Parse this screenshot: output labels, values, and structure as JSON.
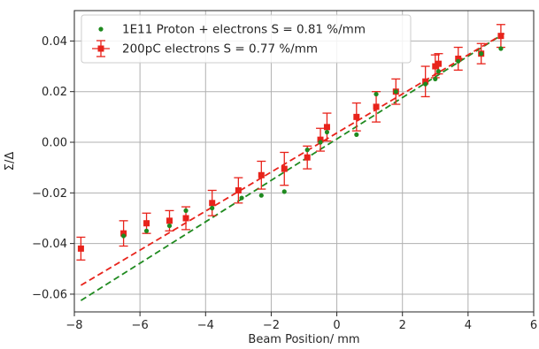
{
  "chart_data": {
    "type": "scatter",
    "xlabel": "Beam Position/ mm",
    "ylabel": "Σ/Δ",
    "xlim": [
      -8,
      6
    ],
    "ylim": [
      -0.067,
      0.052
    ],
    "xticks": [
      -8,
      -6,
      -4,
      -2,
      0,
      2,
      4,
      6
    ],
    "yticks": [
      -0.06,
      -0.04,
      -0.02,
      0.0,
      0.02,
      0.04
    ],
    "xtick_labels": [
      "−8",
      "−6",
      "−4",
      "−2",
      "0",
      "2",
      "4",
      "6"
    ],
    "ytick_labels": [
      "−0.06",
      "−0.04",
      "−0.02",
      "0.00",
      "0.02",
      "0.04"
    ],
    "grid": true,
    "legend_position": "top-left",
    "series": [
      {
        "name": "1E11 Proton + electrons S = 0.81 %/mm",
        "color": "#1f8a1f",
        "marker": "dot",
        "x": [
          -6.5,
          -5.8,
          -5.1,
          -4.6,
          -3.8,
          -2.9,
          -2.3,
          -1.6,
          -0.9,
          -0.5,
          -0.3,
          0.6,
          1.2,
          1.8,
          2.7,
          3.0,
          3.1,
          3.7,
          4.4,
          5.0
        ],
        "y": [
          -0.037,
          -0.035,
          -0.033,
          -0.027,
          -0.026,
          -0.022,
          -0.021,
          -0.0195,
          -0.003,
          0.0,
          0.004,
          0.003,
          0.019,
          0.02,
          0.023,
          0.025,
          0.028,
          0.032,
          0.035,
          0.037
        ],
        "fit": {
          "x1": -7.8,
          "y1": -0.0625,
          "x2": 5.1,
          "y2": 0.043
        }
      },
      {
        "name": "200pC electrons S = 0.77 %/mm",
        "color": "#e8231b",
        "marker": "square-errorbar",
        "x": [
          -7.8,
          -6.5,
          -5.8,
          -5.1,
          -4.6,
          -3.8,
          -3.0,
          -2.3,
          -1.6,
          -0.9,
          -0.5,
          -0.3,
          0.6,
          1.2,
          1.8,
          2.7,
          3.0,
          3.1,
          3.7,
          4.4,
          5.0
        ],
        "y": [
          -0.042,
          -0.036,
          -0.032,
          -0.031,
          -0.03,
          -0.024,
          -0.019,
          -0.013,
          -0.0105,
          -0.006,
          0.001,
          0.006,
          0.01,
          0.014,
          0.02,
          0.024,
          0.03,
          0.031,
          0.033,
          0.035,
          0.042
        ],
        "yerr": [
          0.0045,
          0.005,
          0.004,
          0.004,
          0.0045,
          0.005,
          0.005,
          0.0055,
          0.0065,
          0.0045,
          0.0045,
          0.0055,
          0.0055,
          0.006,
          0.005,
          0.006,
          0.0045,
          0.004,
          0.0045,
          0.004,
          0.0045
        ],
        "fit": {
          "x1": -7.8,
          "y1": -0.0565,
          "x2": 5.1,
          "y2": 0.043
        }
      }
    ]
  }
}
